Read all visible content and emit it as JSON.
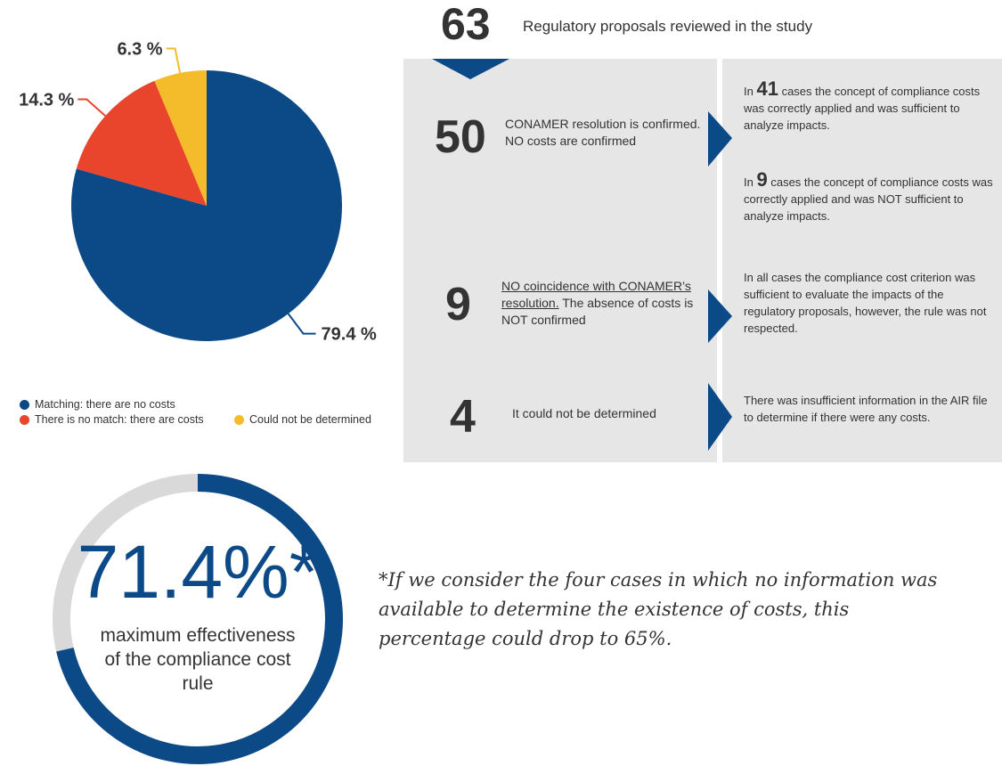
{
  "chart_data": {
    "type": "pie",
    "categories": [
      "Matching: there are no costs",
      "There is no match: there are costs",
      "Could not be determined"
    ],
    "values": [
      79.4,
      14.3,
      6.3
    ],
    "value_labels": [
      "79.4 %",
      "14.3 %",
      "6.3 %"
    ],
    "colors": [
      "#0c4a87",
      "#e8452c",
      "#f4bb2a"
    ]
  },
  "header": {
    "count": 63,
    "text": "Regulatory proposals reviewed in the study"
  },
  "rows": [
    {
      "count": 50,
      "text": "CONAMER resolution is confirmed. NO costs are confirmed",
      "details": [
        {
          "prefix": "In",
          "count": 41,
          "text": "cases the concept of compliance costs was correctly applied and was sufficient to analyze impacts."
        },
        {
          "prefix": "In",
          "count": 9,
          "text": "cases the concept of compliance costs was correctly applied and was NOT sufficient to analyze impacts."
        }
      ]
    },
    {
      "count": 9,
      "text_underlined": "NO coincidence with CONAMER’s resolution.",
      "text": "The absence of costs is NOT confirmed",
      "details": [
        {
          "text": "In all cases the compliance cost criterion was sufficient to evaluate the impacts of the regulatory proposals, however, the rule was not respected."
        }
      ]
    },
    {
      "count": 4,
      "text": "It could not be determined",
      "details": [
        {
          "text": "There was insufficient information in the AIR file to determine if there were any costs."
        }
      ]
    }
  ],
  "gauge": {
    "value": 71.4,
    "value_label": "71.4%*",
    "caption": "maximum effectiveness of the compliance cost rule",
    "color": "#0c4a87",
    "track_color": "#d9d9d9"
  },
  "footnote": "*If we consider the four cases in which no information was available to determine the existence of costs, this percentage could drop to 65%."
}
